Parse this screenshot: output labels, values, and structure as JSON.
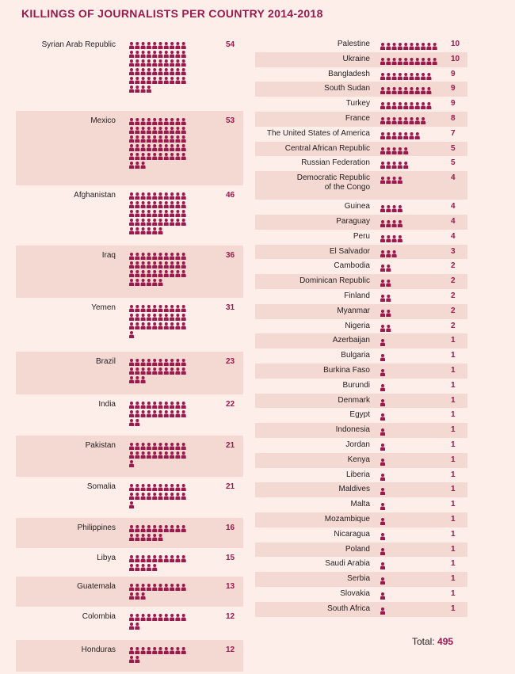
{
  "title": "KILLINGS OF JOURNALISTS PER COUNTRY 2014-2018",
  "total": {
    "label": "Total:",
    "value": "495"
  },
  "colors": {
    "accent": "#9a1a4d",
    "shade": "#f4d8d2",
    "background": "#fdeeea"
  },
  "icon": "person-icon",
  "chart_data": {
    "type": "bar",
    "title": "KILLINGS OF JOURNALISTS PER COUNTRY 2014-2018",
    "categories": [
      "Syrian Arab Republic",
      "Mexico",
      "Afghanistan",
      "Iraq",
      "Yemen",
      "Brazil",
      "India",
      "Pakistan",
      "Somalia",
      "Philippines",
      "Libya",
      "Guatemala",
      "Colombia",
      "Honduras",
      "Palestine",
      "Ukraine",
      "Bangladesh",
      "South Sudan",
      "Turkey",
      "France",
      "The United States of America",
      "Central African Republic",
      "Russian Federation",
      "Democratic Republic of the Congo",
      "Guinea",
      "Paraguay",
      "Peru",
      "El Salvador",
      "Cambodia",
      "Dominican Republic",
      "Finland",
      "Myanmar",
      "Nigeria",
      "Azerbaijan",
      "Bulgaria",
      "Burkina Faso",
      "Burundi",
      "Denmark",
      "Egypt",
      "Indonesia",
      "Jordan",
      "Kenya",
      "Liberia",
      "Maldives",
      "Malta",
      "Mozambique",
      "Nicaragua",
      "Poland",
      "Saudi Arabia",
      "Serbia",
      "Slovakia",
      "South Africa"
    ],
    "values": [
      54,
      53,
      46,
      36,
      31,
      23,
      22,
      21,
      21,
      16,
      15,
      13,
      12,
      12,
      10,
      10,
      9,
      9,
      9,
      8,
      7,
      5,
      5,
      4,
      4,
      4,
      4,
      3,
      2,
      2,
      2,
      2,
      2,
      1,
      1,
      1,
      1,
      1,
      1,
      1,
      1,
      1,
      1,
      1,
      1,
      1,
      1,
      1,
      1,
      1,
      1,
      1
    ],
    "left_column": [
      {
        "name": "Syrian Arab Republic",
        "value": 54
      },
      {
        "name": "Mexico",
        "value": 53
      },
      {
        "name": "Afghanistan",
        "value": 46
      },
      {
        "name": "Iraq",
        "value": 36
      },
      {
        "name": "Yemen",
        "value": 31
      },
      {
        "name": "Brazil",
        "value": 23
      },
      {
        "name": "India",
        "value": 22
      },
      {
        "name": "Pakistan",
        "value": 21
      },
      {
        "name": "Somalia",
        "value": 21
      },
      {
        "name": "Philippines",
        "value": 16
      },
      {
        "name": "Libya",
        "value": 15
      },
      {
        "name": "Guatemala",
        "value": 13
      },
      {
        "name": "Colombia",
        "value": 12
      },
      {
        "name": "Honduras",
        "value": 12
      }
    ],
    "right_column": [
      {
        "name": "Palestine",
        "value": 10
      },
      {
        "name": "Ukraine",
        "value": 10
      },
      {
        "name": "Bangladesh",
        "value": 9
      },
      {
        "name": "South Sudan",
        "value": 9
      },
      {
        "name": "Turkey",
        "value": 9
      },
      {
        "name": "France",
        "value": 8
      },
      {
        "name": "The United States of America",
        "value": 7
      },
      {
        "name": "Central African Republic",
        "value": 5
      },
      {
        "name": "Russian Federation",
        "value": 5
      },
      {
        "name": "Democratic Republic of the Congo",
        "lines": [
          "Democratic Republic",
          "of the Congo"
        ],
        "value": 4
      },
      {
        "name": "Guinea",
        "value": 4
      },
      {
        "name": "Paraguay",
        "value": 4
      },
      {
        "name": "Peru",
        "value": 4
      },
      {
        "name": "El Salvador",
        "value": 3
      },
      {
        "name": "Cambodia",
        "value": 2
      },
      {
        "name": "Dominican Republic",
        "value": 2
      },
      {
        "name": "Finland",
        "value": 2
      },
      {
        "name": "Myanmar",
        "value": 2
      },
      {
        "name": "Nigeria",
        "value": 2
      },
      {
        "name": "Azerbaijan",
        "value": 1
      },
      {
        "name": "Bulgaria",
        "value": 1
      },
      {
        "name": "Burkina Faso",
        "value": 1
      },
      {
        "name": "Burundi",
        "value": 1
      },
      {
        "name": "Denmark",
        "value": 1
      },
      {
        "name": "Egypt",
        "value": 1
      },
      {
        "name": "Indonesia",
        "value": 1
      },
      {
        "name": "Jordan",
        "value": 1
      },
      {
        "name": "Kenya",
        "value": 1
      },
      {
        "name": "Liberia",
        "value": 1
      },
      {
        "name": "Maldives",
        "value": 1
      },
      {
        "name": "Malta",
        "value": 1
      },
      {
        "name": "Mozambique",
        "value": 1
      },
      {
        "name": "Nicaragua",
        "value": 1
      },
      {
        "name": "Poland",
        "value": 1
      },
      {
        "name": "Saudi Arabia",
        "value": 1
      },
      {
        "name": "Serbia",
        "value": 1
      },
      {
        "name": "Slovakia",
        "value": 1
      },
      {
        "name": "South Africa",
        "value": 1
      }
    ]
  }
}
